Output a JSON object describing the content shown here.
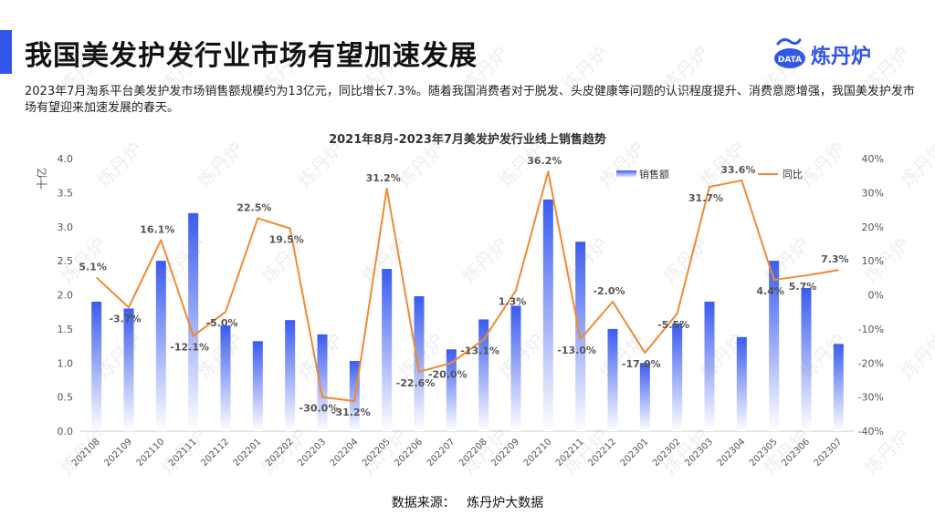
{
  "page": {
    "title": "我国美发护发行业市场有望加速发展",
    "description": "2023年7月淘系平台美发护发市场销售额规模约为13亿元，同比增长7.3%。随着我国消费者对于脱发、头皮健康等问题的认识程度提升、消费意愿增强，我国美发护发市场有望迎来加速发展的春天。",
    "source_label": "数据来源：",
    "source_value": "炼丹炉大数据",
    "logo_text": "炼丹炉",
    "logo_badge": "DATA",
    "watermark": "炼丹炉"
  },
  "colors": {
    "accent": "#2f56e8",
    "bar_top": "#3a5cf0",
    "bar_bottom": "#ffffff",
    "line": "#f08a32"
  },
  "chart_data": {
    "type": "bar+line",
    "title": "2021年8月-2023年7月美发护发行业线上销售趋势",
    "ylabel_left": "十亿",
    "categories": [
      "202108",
      "202109",
      "202110",
      "202111",
      "202112",
      "202201",
      "202202",
      "202203",
      "202204",
      "202205",
      "202206",
      "202207",
      "202208",
      "202209",
      "202210",
      "202211",
      "202212",
      "202301",
      "202302",
      "202303",
      "202304",
      "202305",
      "202306",
      "202307"
    ],
    "series": [
      {
        "name": "销售额",
        "type": "bar",
        "axis": "left",
        "values": [
          1.9,
          1.8,
          2.5,
          3.2,
          1.55,
          1.32,
          1.63,
          1.42,
          1.03,
          2.38,
          1.98,
          1.2,
          1.64,
          1.84,
          3.4,
          2.78,
          1.5,
          1.0,
          1.58,
          1.9,
          1.38,
          2.5,
          2.1,
          1.28
        ]
      },
      {
        "name": "同比",
        "type": "line",
        "axis": "right",
        "values": [
          5.1,
          -3.7,
          16.1,
          -12.1,
          -5.0,
          22.5,
          19.5,
          -30.0,
          -31.2,
          31.2,
          -22.6,
          -20.0,
          -13.1,
          1.3,
          36.2,
          -13.0,
          -2.0,
          -17.0,
          -5.5,
          31.7,
          33.6,
          4.4,
          5.7,
          7.3
        ],
        "labels": [
          "5.1%",
          "-3.7%",
          "16.1%",
          "-12.1%",
          "-5.0%",
          "22.5%",
          "19.5%",
          "-30.0%",
          "-31.2%",
          "31.2%",
          "-22.6%",
          "-20.0%",
          "-13.1%",
          "1.3%",
          "36.2%",
          "-13.0%",
          "-2.0%",
          "-17.0%",
          "-5.5%",
          "31.7%",
          "33.6%",
          "4.4%",
          "5.7%",
          "7.3%"
        ]
      }
    ],
    "ylim_left": [
      0,
      4.0
    ],
    "ylim_right": [
      -40,
      40
    ],
    "yticks_left": [
      "0.0",
      "0.5",
      "1.0",
      "1.5",
      "2.0",
      "2.5",
      "3.0",
      "3.5",
      "4.0"
    ],
    "yticks_right": [
      "-40%",
      "-30%",
      "-20%",
      "-10%",
      "0%",
      "10%",
      "20%",
      "30%",
      "40%"
    ],
    "legend_position": "top-right",
    "grid": false
  }
}
